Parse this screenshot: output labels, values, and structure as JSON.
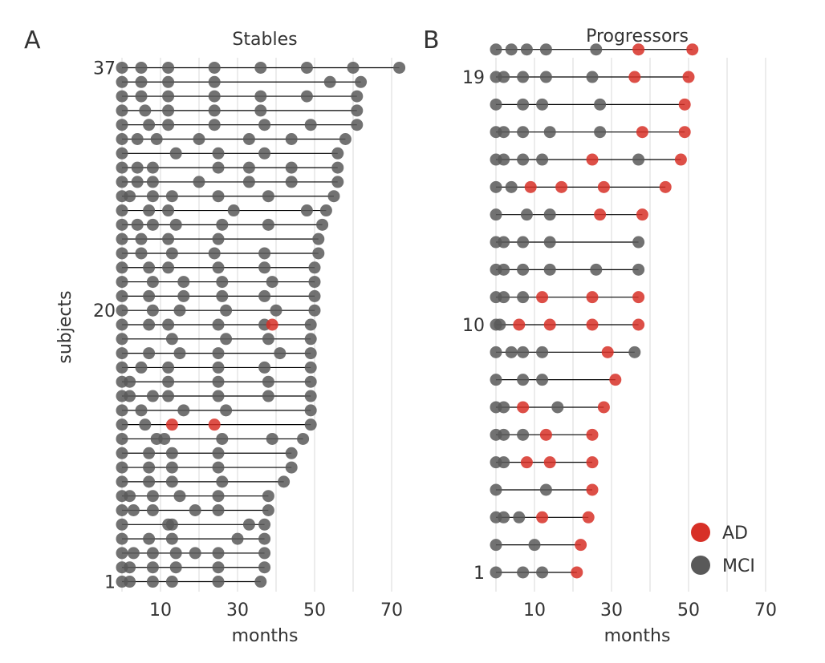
{
  "chart_data": [
    {
      "panel_label": "A",
      "type": "scatter",
      "title": "Stables",
      "xlabel": "months",
      "ylabel": "subjects",
      "xlim": [
        0,
        75
      ],
      "ylim": [
        0.3,
        37.7
      ],
      "x_ticks": [
        10,
        30,
        50,
        70
      ],
      "y_ticks": [
        1,
        20,
        37
      ],
      "grid": "vertical",
      "subjects": [
        {
          "id": 1,
          "mci": [
            0,
            2,
            8,
            13,
            25,
            36
          ],
          "ad": []
        },
        {
          "id": 2,
          "mci": [
            0,
            2,
            8,
            14,
            25,
            37
          ],
          "ad": []
        },
        {
          "id": 3,
          "mci": [
            0,
            3,
            8,
            14,
            19,
            25,
            37
          ],
          "ad": []
        },
        {
          "id": 4,
          "mci": [
            0,
            7,
            13,
            30,
            37
          ],
          "ad": []
        },
        {
          "id": 5,
          "mci": [
            0,
            12,
            13,
            33,
            37
          ],
          "ad": []
        },
        {
          "id": 6,
          "mci": [
            0,
            3,
            8,
            19,
            25,
            38
          ],
          "ad": []
        },
        {
          "id": 7,
          "mci": [
            0,
            2,
            8,
            15,
            25,
            38
          ],
          "ad": []
        },
        {
          "id": 8,
          "mci": [
            0,
            7,
            13,
            26,
            42
          ],
          "ad": []
        },
        {
          "id": 9,
          "mci": [
            0,
            7,
            13,
            25,
            44
          ],
          "ad": []
        },
        {
          "id": 10,
          "mci": [
            0,
            7,
            13,
            25,
            44
          ],
          "ad": []
        },
        {
          "id": 11,
          "mci": [
            0,
            9,
            11,
            26,
            39,
            47
          ],
          "ad": []
        },
        {
          "id": 12,
          "mci": [
            0,
            6,
            49
          ],
          "ad": [
            13,
            24
          ]
        },
        {
          "id": 13,
          "mci": [
            0,
            5,
            16,
            27,
            49
          ],
          "ad": []
        },
        {
          "id": 14,
          "mci": [
            0,
            2,
            8,
            12,
            25,
            38,
            49
          ],
          "ad": []
        },
        {
          "id": 15,
          "mci": [
            0,
            2,
            12,
            25,
            38,
            49
          ],
          "ad": []
        },
        {
          "id": 16,
          "mci": [
            0,
            5,
            12,
            25,
            37,
            49
          ],
          "ad": []
        },
        {
          "id": 17,
          "mci": [
            0,
            7,
            15,
            25,
            41,
            49
          ],
          "ad": []
        },
        {
          "id": 18,
          "mci": [
            0,
            13,
            27,
            38,
            49
          ],
          "ad": []
        },
        {
          "id": 19,
          "mci": [
            0,
            7,
            12,
            25,
            37,
            49
          ],
          "ad": [
            39
          ]
        },
        {
          "id": 20,
          "mci": [
            0,
            8,
            15,
            27,
            40,
            50
          ],
          "ad": []
        },
        {
          "id": 21,
          "mci": [
            0,
            7,
            16,
            26,
            37,
            50
          ],
          "ad": []
        },
        {
          "id": 22,
          "mci": [
            0,
            8,
            16,
            26,
            39,
            50
          ],
          "ad": []
        },
        {
          "id": 23,
          "mci": [
            0,
            7,
            12,
            25,
            37,
            50
          ],
          "ad": []
        },
        {
          "id": 24,
          "mci": [
            0,
            5,
            13,
            24,
            37,
            51
          ],
          "ad": []
        },
        {
          "id": 25,
          "mci": [
            0,
            5,
            12,
            25,
            51
          ],
          "ad": []
        },
        {
          "id": 26,
          "mci": [
            0,
            4,
            8,
            14,
            26,
            38,
            52
          ],
          "ad": []
        },
        {
          "id": 27,
          "mci": [
            0,
            7,
            12,
            29,
            48,
            53
          ],
          "ad": []
        },
        {
          "id": 28,
          "mci": [
            0,
            2,
            8,
            13,
            25,
            38,
            55
          ],
          "ad": []
        },
        {
          "id": 29,
          "mci": [
            0,
            4,
            8,
            20,
            33,
            44,
            56
          ],
          "ad": []
        },
        {
          "id": 30,
          "mci": [
            0,
            4,
            8,
            25,
            33,
            44,
            56
          ],
          "ad": []
        },
        {
          "id": 31,
          "mci": [
            0,
            14,
            25,
            37,
            56
          ],
          "ad": []
        },
        {
          "id": 32,
          "mci": [
            0,
            4,
            9,
            20,
            33,
            44,
            58
          ],
          "ad": []
        },
        {
          "id": 33,
          "mci": [
            0,
            7,
            12,
            24,
            37,
            49,
            61
          ],
          "ad": []
        },
        {
          "id": 34,
          "mci": [
            0,
            6,
            12,
            24,
            36,
            61
          ],
          "ad": []
        },
        {
          "id": 35,
          "mci": [
            0,
            5,
            12,
            24,
            36,
            48,
            61
          ],
          "ad": []
        },
        {
          "id": 36,
          "mci": [
            0,
            5,
            12,
            24,
            54,
            62
          ],
          "ad": []
        },
        {
          "id": 37,
          "mci": [
            0,
            5,
            12,
            24,
            36,
            48,
            60,
            72
          ],
          "ad": []
        }
      ]
    },
    {
      "panel_label": "B",
      "type": "scatter",
      "title": "Progressors",
      "xlabel": "months",
      "ylabel": "",
      "xlim": [
        0,
        75
      ],
      "ylim": [
        0.3,
        19.7
      ],
      "x_ticks": [
        10,
        30,
        50,
        70
      ],
      "y_ticks": [
        1,
        10,
        19
      ],
      "grid": "vertical",
      "legend": {
        "placement": "bottom-right",
        "entries": [
          {
            "label": "AD",
            "color": "#d73027"
          },
          {
            "label": "MCI",
            "color": "#595959"
          }
        ]
      },
      "subjects": [
        {
          "id": 1,
          "mci": [
            0,
            7,
            12
          ],
          "ad": [
            21
          ]
        },
        {
          "id": 2,
          "mci": [
            0,
            10
          ],
          "ad": [
            22
          ]
        },
        {
          "id": 3,
          "mci": [
            0,
            2,
            6
          ],
          "ad": [
            12,
            24
          ]
        },
        {
          "id": 4,
          "mci": [
            0,
            13
          ],
          "ad": [
            25
          ]
        },
        {
          "id": 5,
          "mci": [
            0,
            2
          ],
          "ad": [
            8,
            14,
            25
          ]
        },
        {
          "id": 6,
          "mci": [
            0,
            2,
            7
          ],
          "ad": [
            13,
            25
          ]
        },
        {
          "id": 7,
          "mci": [
            0,
            2,
            16
          ],
          "ad": [
            7,
            28
          ]
        },
        {
          "id": 8,
          "mci": [
            0,
            7,
            12
          ],
          "ad": [
            31
          ]
        },
        {
          "id": 9,
          "mci": [
            0,
            4,
            7,
            12,
            36
          ],
          "ad": [
            29
          ]
        },
        {
          "id": 10,
          "mci": [
            0,
            1
          ],
          "ad": [
            6,
            14,
            25,
            37
          ]
        },
        {
          "id": 11,
          "mci": [
            0,
            2,
            7
          ],
          "ad": [
            12,
            25,
            37
          ]
        },
        {
          "id": 12,
          "mci": [
            0,
            2,
            7,
            14,
            26,
            37
          ],
          "ad": []
        },
        {
          "id": 13,
          "mci": [
            0,
            2,
            7,
            14,
            37
          ],
          "ad": []
        },
        {
          "id": 14,
          "mci": [
            0,
            8,
            14
          ],
          "ad": [
            27,
            38
          ]
        },
        {
          "id": 15,
          "mci": [
            0,
            4
          ],
          "ad": [
            9,
            17,
            28,
            44
          ]
        },
        {
          "id": 16,
          "mci": [
            0,
            2,
            7,
            12,
            37
          ],
          "ad": [
            25,
            48
          ]
        },
        {
          "id": 17,
          "mci": [
            0,
            2,
            7,
            14,
            27
          ],
          "ad": [
            38,
            49
          ]
        },
        {
          "id": 18,
          "mci": [
            0,
            7,
            12,
            27
          ],
          "ad": [
            49
          ]
        },
        {
          "id": 19,
          "mci": [
            0,
            2,
            7,
            13,
            25
          ],
          "ad": [
            36,
            50
          ]
        },
        {
          "id": 20,
          "mci": [
            0,
            4,
            8,
            13,
            26
          ],
          "ad": [
            37,
            51
          ]
        }
      ]
    }
  ],
  "colors": {
    "ad": "#d73027",
    "mci": "#595959",
    "grid": "#d9d9d9",
    "line": "#000000",
    "text": "#333333"
  }
}
